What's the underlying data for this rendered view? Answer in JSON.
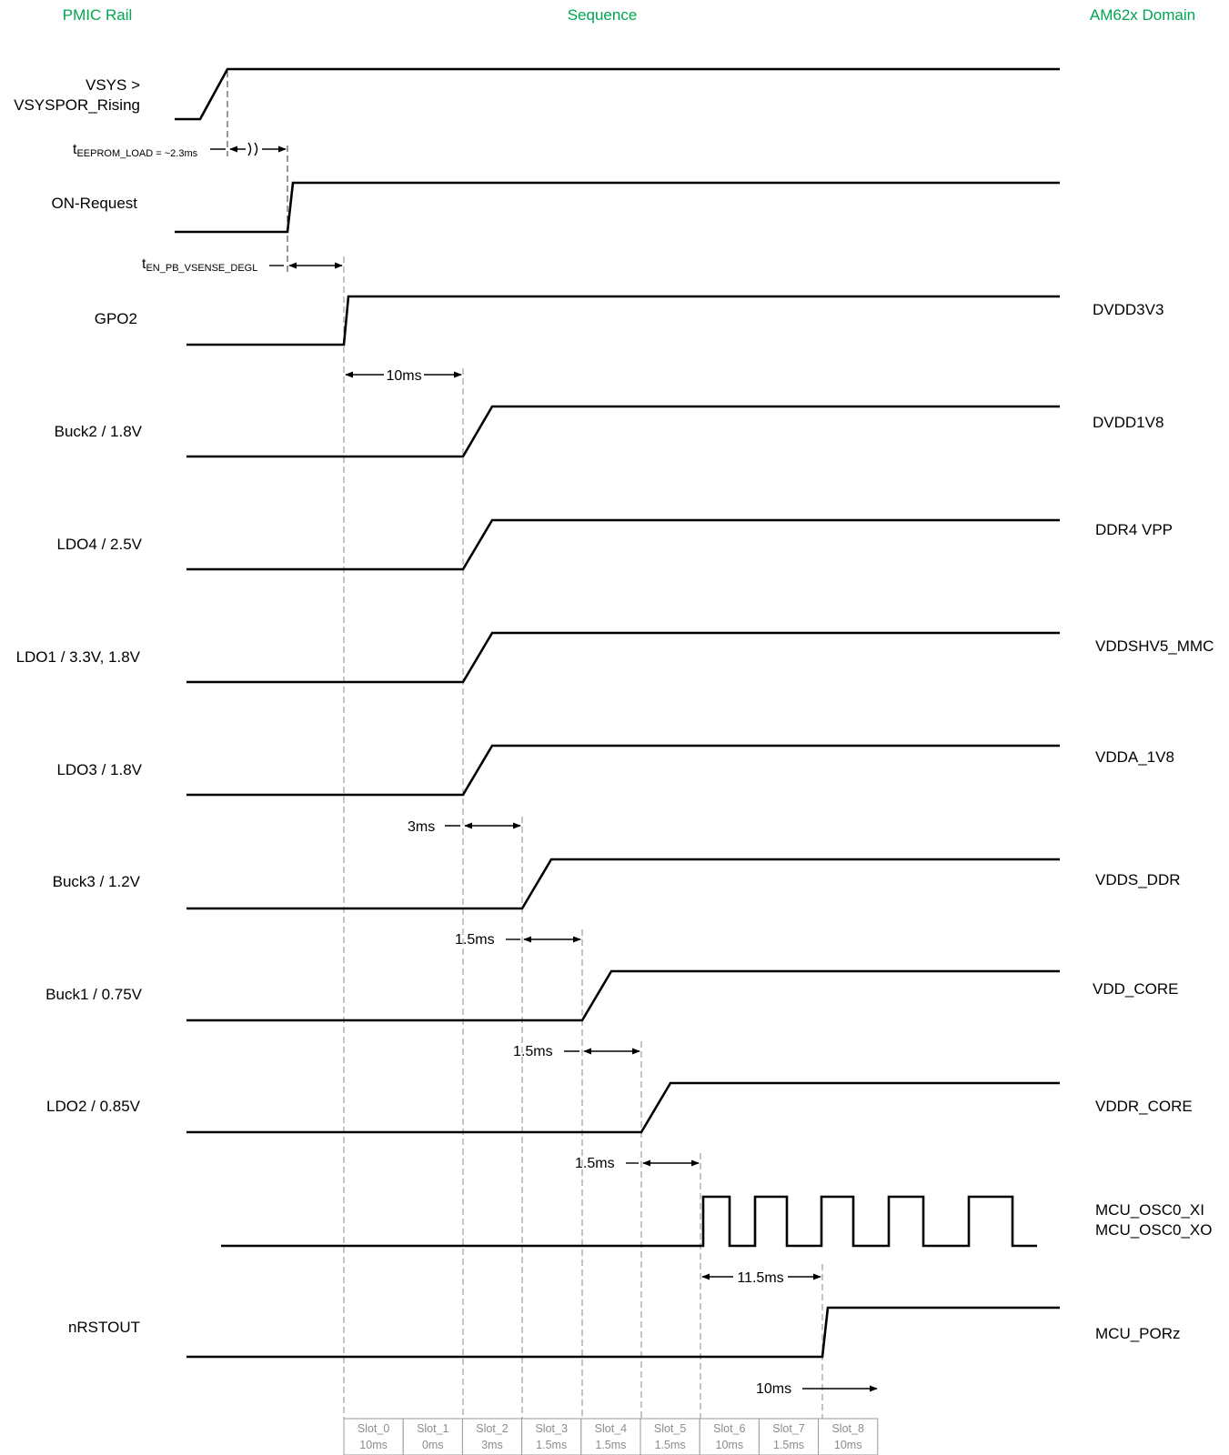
{
  "headers": {
    "left": "PMIC Rail",
    "center": "Sequence",
    "right": "AM62x Domain"
  },
  "rails": [
    {
      "id": "vsys",
      "lines": [
        "VSYS >",
        "VSYSPOR_Rising"
      ],
      "domain": []
    },
    {
      "id": "on-request",
      "lines": [
        "ON-Request"
      ],
      "domain": []
    },
    {
      "id": "gpo2",
      "lines": [
        "GPO2"
      ],
      "domain": [
        "DVDD3V3"
      ]
    },
    {
      "id": "buck2",
      "lines": [
        "Buck2 / 1.8V"
      ],
      "domain": [
        "DVDD1V8"
      ]
    },
    {
      "id": "ldo4",
      "lines": [
        "LDO4 / 2.5V"
      ],
      "domain": [
        "DDR4 VPP"
      ]
    },
    {
      "id": "ldo1",
      "lines": [
        "LDO1 / 3.3V, 1.8V"
      ],
      "domain": [
        "VDDSHV5_MMC"
      ]
    },
    {
      "id": "ldo3",
      "lines": [
        "LDO3 / 1.8V"
      ],
      "domain": [
        "VDDA_1V8"
      ]
    },
    {
      "id": "buck3",
      "lines": [
        "Buck3 / 1.2V"
      ],
      "domain": [
        "VDDS_DDR"
      ]
    },
    {
      "id": "buck1",
      "lines": [
        "Buck1 / 0.75V"
      ],
      "domain": [
        "VDD_CORE"
      ]
    },
    {
      "id": "ldo2",
      "lines": [
        "LDO2 / 0.85V"
      ],
      "domain": [
        "VDDR_CORE"
      ]
    },
    {
      "id": "osc",
      "lines": [],
      "domain": [
        "MCU_OSC0_XI",
        "MCU_OSC0_XO"
      ]
    },
    {
      "id": "nrstout",
      "lines": [
        "nRSTOUT"
      ],
      "domain": [
        "MCU_PORz"
      ]
    }
  ],
  "annotations": {
    "t_eeprom": {
      "main": "t",
      "sub": "EEPROM_LOAD = ~2.3ms"
    },
    "t_en_pb": {
      "main": "t",
      "sub": "EN_PB_VSENSE_DEGL"
    },
    "d_10ms_a": "10ms",
    "d_3ms": "3ms",
    "d_1_5ms_a": "1.5ms",
    "d_1_5ms_b": "1.5ms",
    "d_1_5ms_c": "1.5ms",
    "d_11_5ms": "11.5ms",
    "d_10ms_b": "10ms"
  },
  "slots": [
    {
      "name": "Slot_0",
      "time": "10ms"
    },
    {
      "name": "Slot_1",
      "time": "0ms"
    },
    {
      "name": "Slot_2",
      "time": "3ms"
    },
    {
      "name": "Slot_3",
      "time": "1.5ms"
    },
    {
      "name": "Slot_4",
      "time": "1.5ms"
    },
    {
      "name": "Slot_5",
      "time": "1.5ms"
    },
    {
      "name": "Slot_6",
      "time": "10ms"
    },
    {
      "name": "Slot_7",
      "time": "1.5ms"
    },
    {
      "name": "Slot_8",
      "time": "10ms"
    }
  ]
}
